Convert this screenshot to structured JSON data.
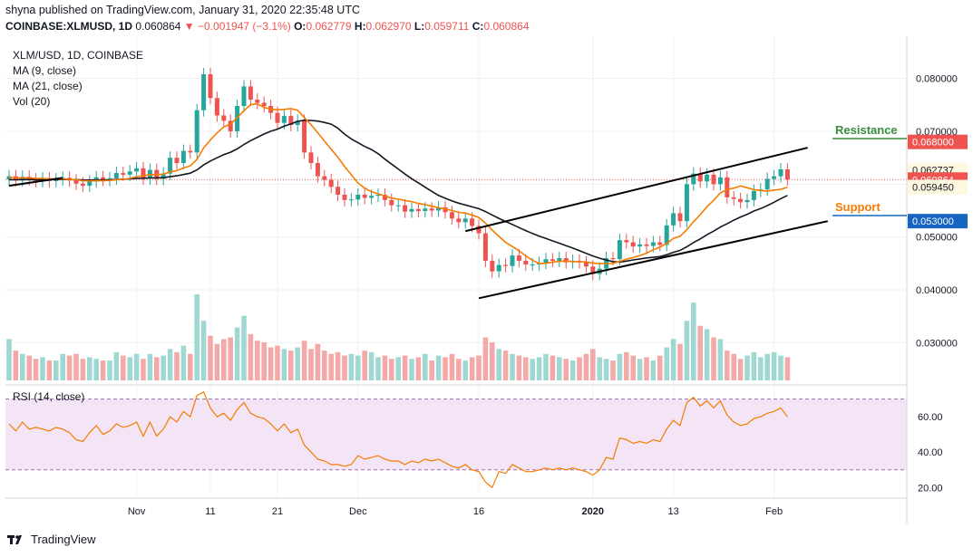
{
  "header": {
    "published": "shyna published on TradingView.com, January 31, 2020 22:35:48 UTC",
    "symbol": "COINBASE:XLMUSD, 1D",
    "last": "0.060864",
    "change": "−0.001947 (−3.1%)",
    "o_label": "O:",
    "o": "0.062779",
    "h_label": "H:",
    "h": "0.062970",
    "l_label": "L:",
    "l": "0.059711",
    "c_label": "C:",
    "c": "0.060864"
  },
  "legend": {
    "title": "XLM/USD, 1D, COINBASE",
    "ma9": "MA (9, close)",
    "ma21": "MA (21, close)",
    "vol": "Vol (20)",
    "rsi": "RSI (14, close)"
  },
  "annotations": {
    "resistance": "Resistance",
    "support": "Support"
  },
  "footer": {
    "brand": "TradingView"
  },
  "colors": {
    "up": "#26a69a",
    "down": "#ef5350",
    "ma9": "#f57c00",
    "ma21": "#131722",
    "resistance": "#388e3c",
    "support": "#f57c00",
    "support_badge": "#1565c0",
    "rsi_line": "#f57c00",
    "rsi_band": "#f3e5f5"
  },
  "chart_data": [
    {
      "type": "candlestick",
      "title": "XLM/USD, 1D, COINBASE",
      "ylim": [
        0.022,
        0.088
      ],
      "yticks": [
        "0.080000",
        "0.070000",
        "0.060000",
        "0.050000",
        "0.040000",
        "0.030000"
      ],
      "xticks": [
        "Nov",
        "11",
        "21",
        "Dec",
        "16",
        "2020",
        "13",
        "Feb"
      ],
      "price_labels": [
        {
          "value": "0.068000",
          "kind": "resistance"
        },
        {
          "value": "0.062737",
          "kind": "plain"
        },
        {
          "value": "0.060864",
          "kind": "last"
        },
        {
          "value": "0.059450",
          "kind": "plain"
        },
        {
          "value": "0.053000",
          "kind": "support"
        }
      ],
      "close": [
        0.0615,
        0.0607,
        0.0614,
        0.0609,
        0.0606,
        0.0611,
        0.0606,
        0.0609,
        0.0612,
        0.0607,
        0.0601,
        0.0597,
        0.0605,
        0.0613,
        0.0608,
        0.0611,
        0.0621,
        0.0618,
        0.0624,
        0.063,
        0.0611,
        0.0627,
        0.061,
        0.062,
        0.065,
        0.064,
        0.0663,
        0.066,
        0.074,
        0.0808,
        0.0763,
        0.073,
        0.072,
        0.07,
        0.0748,
        0.0785,
        0.076,
        0.0754,
        0.0748,
        0.0735,
        0.0716,
        0.0729,
        0.0712,
        0.072,
        0.066,
        0.064,
        0.0615,
        0.0608,
        0.0595,
        0.058,
        0.057,
        0.0571,
        0.058,
        0.0574,
        0.0578,
        0.058,
        0.057,
        0.056,
        0.056,
        0.0548,
        0.0553,
        0.0549,
        0.0554,
        0.055,
        0.0556,
        0.0547,
        0.0535,
        0.0528,
        0.0535,
        0.0521,
        0.0507,
        0.0455,
        0.0435,
        0.0447,
        0.0445,
        0.0465,
        0.0455,
        0.0448,
        0.0448,
        0.0451,
        0.0458,
        0.0455,
        0.046,
        0.0452,
        0.0455,
        0.0452,
        0.0444,
        0.043,
        0.044,
        0.046,
        0.0458,
        0.0494,
        0.049,
        0.0482,
        0.0486,
        0.0483,
        0.049,
        0.0485,
        0.0522,
        0.0545,
        0.053,
        0.06,
        0.062,
        0.0605,
        0.0618,
        0.06,
        0.0613,
        0.0575,
        0.0572,
        0.0566,
        0.057,
        0.0587,
        0.059,
        0.061,
        0.0615,
        0.0628,
        0.0609
      ],
      "volume": [
        2.5,
        1.8,
        1.6,
        1.5,
        1.3,
        1.4,
        1.2,
        1.2,
        1.6,
        1.5,
        1.6,
        1.3,
        1.4,
        1.3,
        1.2,
        1.2,
        1.7,
        1.5,
        1.4,
        1.6,
        1.3,
        1.6,
        1.4,
        1.5,
        1.9,
        1.7,
        2.1,
        1.6,
        5.2,
        3.6,
        2.7,
        2.2,
        2.5,
        2.6,
        3.2,
        3.9,
        2.8,
        2.4,
        2.3,
        2.0,
        2.1,
        1.9,
        1.8,
        2.0,
        2.4,
        1.9,
        2.2,
        1.8,
        1.6,
        1.7,
        1.5,
        1.6,
        1.5,
        1.8,
        1.7,
        1.4,
        1.5,
        1.3,
        1.4,
        1.5,
        1.3,
        1.4,
        1.6,
        1.2,
        1.5,
        1.4,
        1.6,
        1.3,
        1.2,
        1.4,
        1.5,
        2.6,
        2.3,
        1.9,
        1.8,
        1.6,
        1.5,
        1.4,
        1.3,
        1.4,
        1.6,
        1.5,
        1.4,
        1.3,
        1.2,
        1.4,
        1.6,
        1.9,
        1.4,
        1.3,
        1.2,
        1.6,
        1.7,
        1.5,
        1.3,
        1.4,
        1.2,
        1.5,
        2.0,
        2.5,
        2.2,
        3.6,
        4.7,
        3.3,
        3.1,
        2.6,
        2.5,
        1.8,
        1.6,
        1.3,
        1.5,
        1.7,
        1.4,
        1.6,
        1.7,
        1.5,
        1.4
      ],
      "rsi": [
        56,
        52,
        57,
        53,
        54,
        53,
        52,
        54,
        53,
        51,
        47,
        46,
        51,
        55,
        50,
        52,
        56,
        54,
        55,
        57,
        49,
        57,
        49,
        53,
        60,
        57,
        63,
        60,
        72,
        74,
        65,
        60,
        62,
        58,
        64,
        68,
        62,
        60,
        59,
        56,
        52,
        56,
        51,
        53,
        44,
        40,
        36,
        35,
        33,
        33,
        32,
        33,
        38,
        36,
        37,
        38,
        36,
        35,
        35,
        33,
        35,
        34,
        36,
        35,
        36,
        34,
        32,
        31,
        33,
        30,
        29,
        23,
        20,
        29,
        28,
        33,
        31,
        29,
        29,
        30,
        31,
        30,
        31,
        30,
        31,
        30,
        29,
        27,
        30,
        37,
        36,
        48,
        47,
        45,
        46,
        45,
        47,
        46,
        53,
        58,
        55,
        68,
        71,
        66,
        69,
        65,
        69,
        61,
        57,
        55,
        56,
        59,
        60,
        62,
        63,
        65,
        60
      ],
      "ma9_start": 0.0612,
      "ma21_start": 0.0608
    }
  ]
}
